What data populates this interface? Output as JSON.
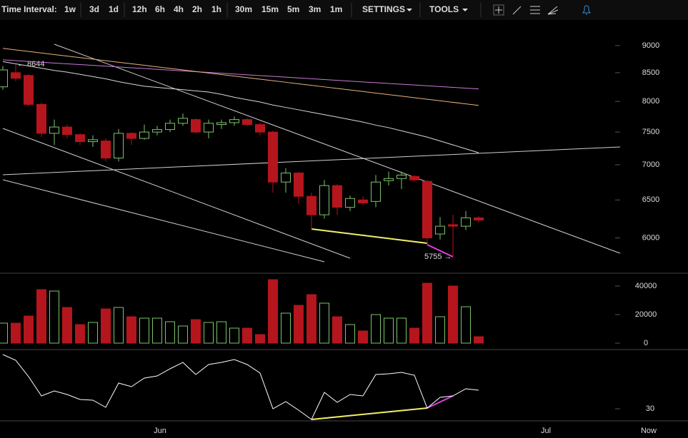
{
  "toolbar": {
    "label": "Time Interval:",
    "intervals": [
      "1w",
      "3d",
      "1d",
      "12h",
      "6h",
      "4h",
      "2h",
      "1h",
      "30m",
      "15m",
      "5m",
      "3m",
      "1m"
    ],
    "active": 2,
    "menus": [
      "SETTINGS",
      "TOOLS"
    ]
  },
  "chart_data": [
    {
      "type": "candlestick",
      "log_scale": true,
      "ylim": [
        5570,
        9470
      ],
      "yticks": [
        6000,
        6500,
        7000,
        7500,
        8000,
        8500,
        9000
      ],
      "up_color": "#7cc46a",
      "down_color": "#b5151c",
      "categories": [
        null,
        null,
        null,
        null,
        null,
        null,
        null,
        null,
        null,
        null,
        null,
        null,
        "Jun",
        null,
        null,
        null,
        null,
        null,
        null,
        null,
        null,
        null,
        null,
        null,
        null,
        null,
        null,
        null,
        null,
        null,
        null,
        null,
        null,
        null,
        null,
        null,
        null,
        null,
        null,
        null,
        null,
        null,
        "Jul",
        null,
        null,
        null,
        null,
        null,
        null,
        null,
        "Now"
      ],
      "open": [
        8250,
        8500,
        8450,
        7950,
        7480,
        7580,
        7460,
        7350,
        7360,
        7100,
        7480,
        7400,
        7500,
        7540,
        7640,
        7700,
        7500,
        7620,
        7650,
        7700,
        7620,
        7500,
        6750,
        6880,
        6550,
        6300,
        6700,
        6400,
        6500,
        6480,
        6770,
        6800,
        6830,
        6760,
        6050,
        6170,
        6150,
        6260,
        null,
        null,
        null,
        null,
        null,
        null,
        null,
        null,
        null,
        null,
        null,
        null,
        null
      ],
      "high": [
        8620,
        8644,
        8480,
        7980,
        7700,
        7620,
        7480,
        7450,
        7400,
        7550,
        7500,
        7620,
        7600,
        7700,
        7800,
        7720,
        7700,
        7700,
        7750,
        7720,
        7650,
        7520,
        6950,
        6900,
        6600,
        6780,
        6720,
        6560,
        6550,
        6850,
        6900,
        6900,
        6850,
        6780,
        6270,
        6300,
        6350,
        6280,
        null,
        null,
        null,
        null,
        null,
        null,
        null,
        null,
        null,
        null,
        null,
        null,
        null
      ],
      "low": [
        8200,
        8350,
        7920,
        7420,
        7300,
        7400,
        7300,
        7270,
        7050,
        7050,
        7300,
        7380,
        7450,
        7500,
        7600,
        7480,
        7400,
        7550,
        7600,
        7600,
        7450,
        6600,
        6600,
        6450,
        6100,
        6250,
        6300,
        6350,
        6430,
        6400,
        6700,
        6650,
        6750,
        5900,
        5980,
        5755,
        6100,
        6200,
        null,
        null,
        null,
        null,
        null,
        null,
        null,
        null,
        null,
        null,
        null,
        null,
        null
      ],
      "close": [
        8550,
        8400,
        7950,
        7480,
        7580,
        7460,
        7350,
        7380,
        7100,
        7480,
        7400,
        7500,
        7540,
        7640,
        7720,
        7500,
        7640,
        7650,
        7700,
        7620,
        7500,
        6750,
        6880,
        6550,
        6300,
        6700,
        6400,
        6520,
        6460,
        6750,
        6800,
        6850,
        6780,
        6000,
        6150,
        6150,
        6260,
        6230,
        null,
        null,
        null,
        null,
        null,
        null,
        null,
        null,
        null,
        null,
        null,
        null,
        null
      ],
      "series": [
        {
          "color": "#c77ad6",
          "values": [
            8733,
            8718,
            8704,
            8689,
            8675,
            8660,
            8646,
            8632,
            8617,
            8603,
            8589,
            8575,
            8560,
            8546,
            8532,
            8518,
            8504,
            8490,
            8476,
            8462,
            8448,
            8434,
            8420,
            8406,
            8392,
            8378,
            8364,
            8350,
            8336,
            8323,
            8309,
            8295,
            8282,
            8268,
            8254,
            8241,
            8227,
            8214,
            null,
            null,
            null,
            null,
            null,
            null,
            null,
            null,
            null,
            null,
            null,
            null,
            null
          ]
        },
        {
          "color": "#e8b27a",
          "values": [
            8947,
            8918,
            8889,
            8860,
            8831,
            8803,
            8774,
            8746,
            8717,
            8689,
            8661,
            8633,
            8605,
            8577,
            8549,
            8521,
            8494,
            8466,
            8439,
            8411,
            8384,
            8357,
            8330,
            8303,
            8276,
            8249,
            8222,
            8196,
            8169,
            8142,
            8116,
            8090,
            8063,
            8037,
            8011,
            7985,
            7959,
            7933,
            null,
            null,
            null,
            null,
            null,
            null,
            null,
            null,
            null,
            null,
            null,
            null,
            null
          ]
        },
        {
          "color": "#d8d8d8",
          "values": [
            8700,
            8660,
            8620,
            8580,
            8540,
            8510,
            8470,
            8430,
            8390,
            8340,
            8300,
            8260,
            8240,
            8220,
            8200,
            8180,
            8160,
            8120,
            8070,
            8030,
            7990,
            7940,
            7900,
            7860,
            7820,
            7780,
            7740,
            7700,
            7660,
            7610,
            7570,
            7520,
            7470,
            7420,
            7360,
            7300,
            7240,
            7180,
            null,
            null,
            null,
            null,
            null,
            null,
            null,
            null,
            null,
            null,
            null,
            null,
            null
          ]
        }
      ],
      "annotations": [
        "← 8644",
        "5755 →"
      ]
    },
    {
      "type": "bar",
      "ylim": [
        -4500,
        48000
      ],
      "yticks": [
        0,
        20000,
        40000
      ],
      "values": [
        14000,
        14000,
        19000,
        37500,
        36500,
        25000,
        13000,
        14500,
        24000,
        25000,
        18500,
        17500,
        17500,
        15000,
        12000,
        16500,
        14500,
        15000,
        10500,
        10500,
        6000,
        44500,
        21000,
        26500,
        34000,
        28000,
        18500,
        13000,
        8500,
        20000,
        17500,
        17500,
        10500,
        42000,
        18500,
        40000,
        25500,
        4500,
        null,
        null,
        null,
        null,
        null,
        null,
        null,
        null,
        null,
        null,
        null,
        null,
        null
      ]
    },
    {
      "type": "line",
      "color": "#ffffff",
      "ylim": [
        21.5,
        70.5
      ],
      "yticks": [
        30
      ],
      "values": [
        68,
        64,
        52.5,
        39,
        42.5,
        40,
        36.5,
        36,
        31,
        48,
        45.5,
        51.5,
        53,
        58,
        62.5,
        54,
        61,
        62.5,
        64.5,
        61,
        55,
        30,
        35,
        29,
        22.5,
        41.5,
        34.5,
        40,
        39,
        54,
        54.5,
        55.5,
        53.5,
        30.5,
        38,
        39,
        44,
        43,
        null,
        null,
        null,
        null,
        null,
        null,
        null,
        null,
        null,
        null,
        null,
        null,
        null
      ]
    }
  ]
}
